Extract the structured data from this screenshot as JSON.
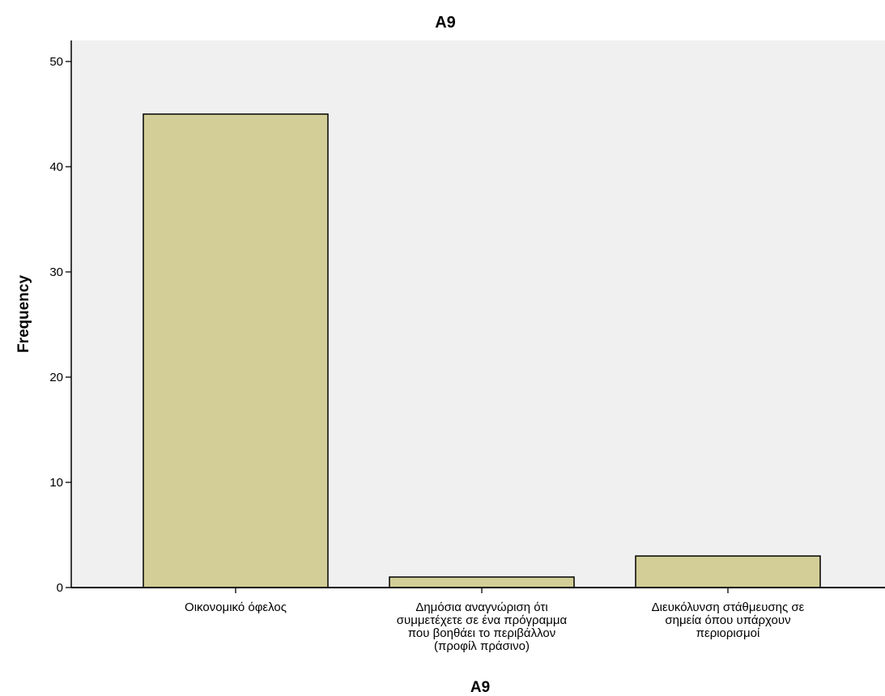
{
  "chart_data": {
    "type": "bar",
    "title": "A9",
    "xlabel": "A9",
    "ylabel": "Frequency",
    "categories": [
      [
        "Οικονομικό όφελος"
      ],
      [
        "Δημόσια αναγνώριση ότι",
        "συμμετέχετε σε ένα πρόγραμμα",
        "που βοηθάει το περιβάλλον",
        "(προφίλ πράσινο)"
      ],
      [
        "Διευκόλυνση στάθμευσης σε",
        "σημεία όπου υπάρχουν",
        "περιορισμοί"
      ]
    ],
    "values": [
      45,
      1,
      3
    ],
    "ylim": [
      0,
      52
    ],
    "yticks": [
      0,
      10,
      20,
      30,
      40,
      50
    ],
    "grid": false,
    "legend": "none",
    "colors": {
      "bar_fill": "#d3ce97",
      "bar_stroke": "#000000",
      "plot_background": "#f0f0f0",
      "axis": "#000000"
    }
  }
}
